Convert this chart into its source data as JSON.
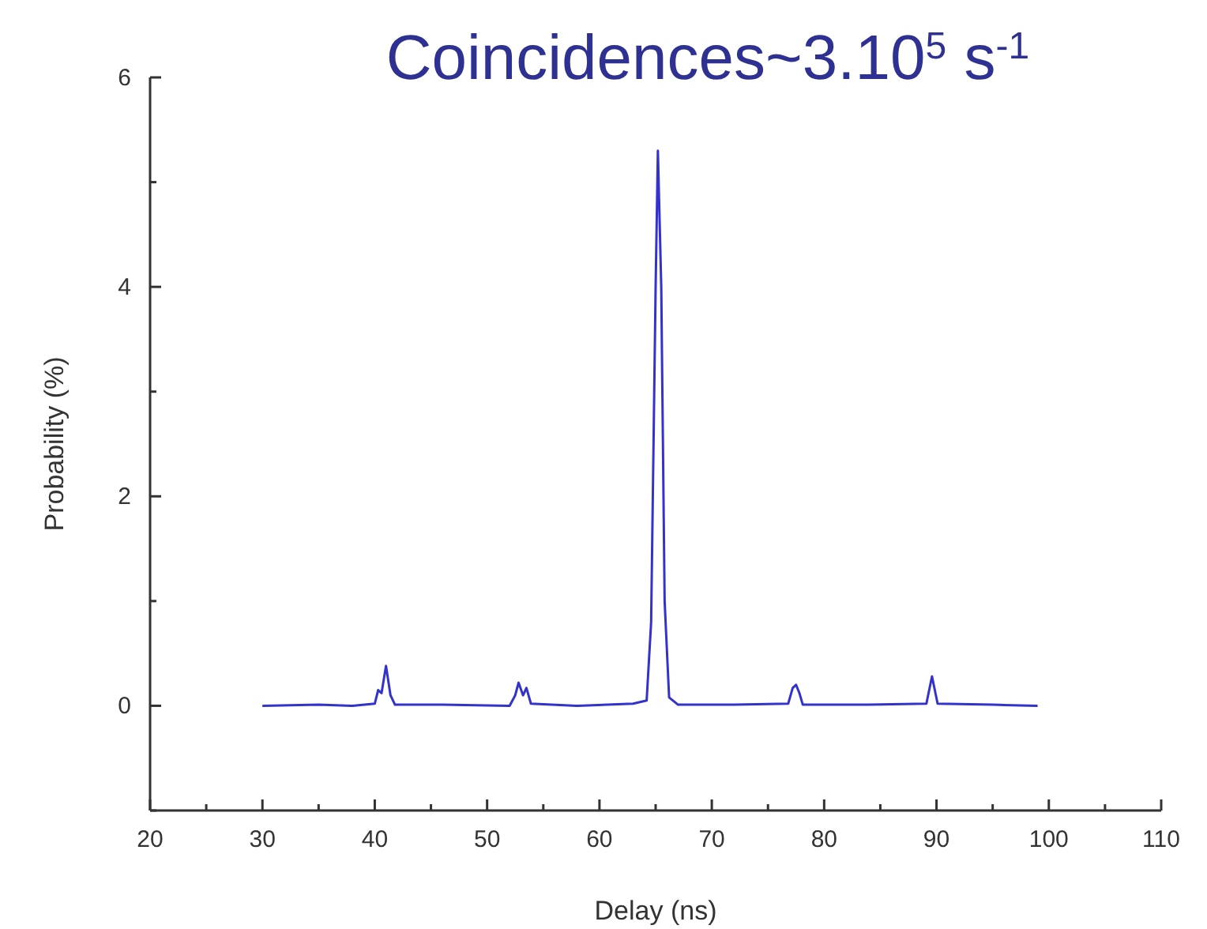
{
  "chart_data": {
    "type": "line",
    "title": "Coincidences~3.10$^{5}$ s$^{-1}$",
    "xlabel": "Delay (ns)",
    "ylabel": "Probability (%)",
    "xlim": [
      20,
      110
    ],
    "xticks": [
      20,
      {
        "value": 25,
        "label": null
      },
      30,
      {
        "value": 35,
        "label": null
      },
      40,
      {
        "value": 45,
        "label": null
      },
      50,
      {
        "value": 55,
        "label": null
      },
      60,
      {
        "value": 65,
        "label": null
      },
      70,
      {
        "value": 75,
        "label": null
      },
      80,
      {
        "value": 85,
        "label": null
      },
      90,
      {
        "value": 95,
        "label": null
      },
      100,
      {
        "value": 105,
        "label": null
      },
      110
    ],
    "ylim": [
      -1,
      6
    ],
    "yticks": [
      {
        "value": -1,
        "label": null
      },
      0,
      {
        "value": 1,
        "label": null
      },
      2,
      {
        "value": 3,
        "label": null
      },
      4,
      {
        "value": 5,
        "label": null
      },
      6
    ],
    "marker": "none",
    "line_style": "solid",
    "series": [
      {
        "color": "#3333cc",
        "x": [
          30,
          35,
          38,
          40,
          40.3,
          40.6,
          41,
          41.4,
          41.8,
          46,
          52,
          52.5,
          52.8,
          53.2,
          53.5,
          53.9,
          58,
          63,
          64.2,
          64.6,
          65,
          65.2,
          65.5,
          65.8,
          66.2,
          67,
          72,
          76.8,
          77.2,
          77.5,
          77.8,
          78.1,
          84,
          89.1,
          89.6,
          90.1,
          95,
          99
        ],
        "values": [
          0,
          0.01,
          0,
          0.02,
          0.15,
          0.12,
          0.38,
          0.1,
          0.01,
          0.01,
          0,
          0.1,
          0.22,
          0.1,
          0.17,
          0.02,
          0,
          0.02,
          0.05,
          0.8,
          4,
          5.3,
          4,
          1,
          0.08,
          0.01,
          0.01,
          0.02,
          0.17,
          0.2,
          0.12,
          0.01,
          0.01,
          0.02,
          0.28,
          0.02,
          0.01,
          0
        ]
      }
    ]
  }
}
